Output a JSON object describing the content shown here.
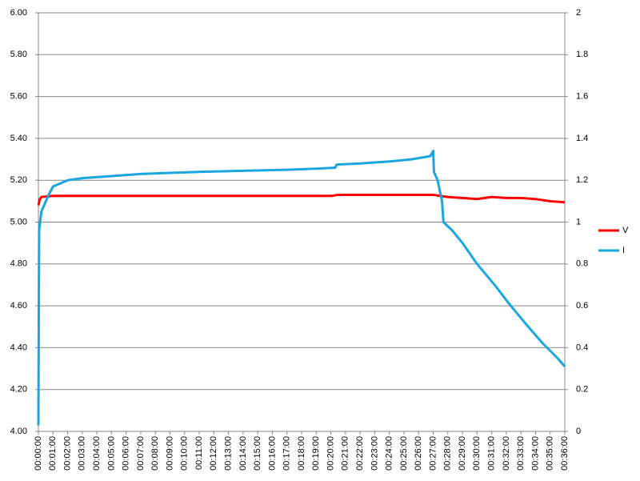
{
  "chart_data": {
    "type": "line",
    "xlim": [
      0,
      36
    ],
    "xticks": [
      {
        "value": 0,
        "label": "00:00:00"
      },
      {
        "value": 1,
        "label": "00:01:00"
      },
      {
        "value": 2,
        "label": "00:02:00"
      },
      {
        "value": 3,
        "label": "00:03:00"
      },
      {
        "value": 4,
        "label": "00:04:00"
      },
      {
        "value": 5,
        "label": "00:05:00"
      },
      {
        "value": 6,
        "label": "00:06:00"
      },
      {
        "value": 7,
        "label": "00:07:00"
      },
      {
        "value": 8,
        "label": "00:08:00"
      },
      {
        "value": 9,
        "label": "00:09:00"
      },
      {
        "value": 10,
        "label": "00:10:00"
      },
      {
        "value": 11,
        "label": "00:11:00"
      },
      {
        "value": 12,
        "label": "00:12:00"
      },
      {
        "value": 13,
        "label": "00:13:00"
      },
      {
        "value": 14,
        "label": "00:14:00"
      },
      {
        "value": 15,
        "label": "00:15:00"
      },
      {
        "value": 16,
        "label": "00:16:00"
      },
      {
        "value": 17,
        "label": "00:17:00"
      },
      {
        "value": 18,
        "label": "00:18:00"
      },
      {
        "value": 19,
        "label": "00:19:00"
      },
      {
        "value": 20,
        "label": "00:20:00"
      },
      {
        "value": 21,
        "label": "00:21:00"
      },
      {
        "value": 22,
        "label": "00:22:00"
      },
      {
        "value": 23,
        "label": "00:23:00"
      },
      {
        "value": 24,
        "label": "00:24:00"
      },
      {
        "value": 25,
        "label": "00:25:00"
      },
      {
        "value": 26,
        "label": "00:26:00"
      },
      {
        "value": 27,
        "label": "00:27:00"
      },
      {
        "value": 28,
        "label": "00:28:00"
      },
      {
        "value": 29,
        "label": "00:29:00"
      },
      {
        "value": 30,
        "label": "00:30:00"
      },
      {
        "value": 31,
        "label": "00:31:00"
      },
      {
        "value": 32,
        "label": "00:32:00"
      },
      {
        "value": 33,
        "label": "00:33:00"
      },
      {
        "value": 34,
        "label": "00:34:00"
      },
      {
        "value": 35,
        "label": "00:35:00"
      },
      {
        "value": 36,
        "label": "00:36:00"
      }
    ],
    "ylim": [
      4,
      6
    ],
    "yticks": [
      {
        "value": 4,
        "label": "4.00"
      },
      {
        "value": 4.2,
        "label": "4.20"
      },
      {
        "value": 4.4,
        "label": "4.40"
      },
      {
        "value": 4.6,
        "label": "4.60"
      },
      {
        "value": 4.8,
        "label": "4.80"
      },
      {
        "value": 5,
        "label": "5.00"
      },
      {
        "value": 5.2,
        "label": "5.20"
      },
      {
        "value": 5.4,
        "label": "5.40"
      },
      {
        "value": 5.6,
        "label": "5.60"
      },
      {
        "value": 5.8,
        "label": "5.80"
      },
      {
        "value": 6,
        "label": "6.00"
      }
    ],
    "y2lim": [
      0,
      2
    ],
    "y2ticks": [
      0,
      0.2,
      0.4,
      0.6,
      0.8,
      1,
      1.2,
      1.4,
      1.6,
      1.8,
      2
    ],
    "grid": true,
    "legend": "right",
    "series": [
      {
        "name": "V",
        "color": "#ff0000",
        "x": [
          0,
          0.1,
          0.2,
          1,
          5,
          10,
          15,
          20,
          20.5,
          25,
          27,
          28,
          29,
          30,
          31,
          32,
          33,
          34,
          35,
          36
        ],
        "values": [
          5.08,
          5.11,
          5.12,
          5.125,
          5.125,
          5.125,
          5.125,
          5.125,
          5.13,
          5.13,
          5.13,
          5.12,
          5.115,
          5.11,
          5.12,
          5.115,
          5.115,
          5.11,
          5.1,
          5.095
        ]
      },
      {
        "name": "I",
        "color": "#1aa7e0",
        "axis": "y2",
        "x": [
          0,
          0.05,
          0.2,
          0.7,
          1,
          2,
          3,
          5,
          7,
          9,
          11,
          14,
          17,
          19,
          20.3,
          20.4,
          22,
          24,
          25.5,
          26.8,
          27,
          27.05,
          27.3,
          27.6,
          27.7,
          28.3,
          29,
          30,
          31.2,
          32.3,
          33.5,
          34.5,
          35.5,
          36
        ],
        "values": [
          0.03,
          0.96,
          1.05,
          1.13,
          1.17,
          1.2,
          1.21,
          1.22,
          1.23,
          1.235,
          1.24,
          1.245,
          1.25,
          1.255,
          1.26,
          1.275,
          1.28,
          1.29,
          1.3,
          1.315,
          1.34,
          1.24,
          1.2,
          1.1,
          1.0,
          0.96,
          0.9,
          0.8,
          0.7,
          0.6,
          0.5,
          0.42,
          0.35,
          0.31
        ]
      }
    ]
  }
}
